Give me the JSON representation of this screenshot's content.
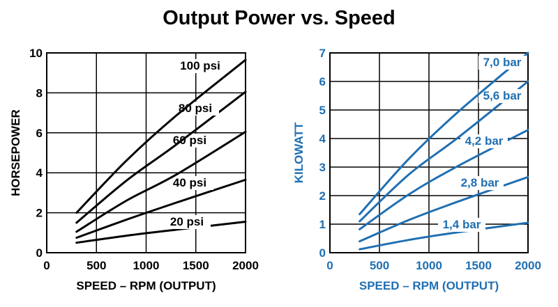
{
  "title": "Output Power vs. Speed",
  "colors": {
    "left": "#000000",
    "right": "#1f6fb2"
  },
  "chart_data": [
    {
      "type": "line",
      "xlabel": "SPEED – RPM (OUTPUT)",
      "ylabel": "HORSEPOWER",
      "xlim": [
        0,
        2000
      ],
      "ylim": [
        0,
        10
      ],
      "xticks": [
        0,
        500,
        1000,
        1500,
        2000
      ],
      "yticks": [
        0,
        2,
        4,
        6,
        8,
        10
      ],
      "grid": true,
      "series": [
        {
          "name": "20 psi",
          "x": [
            300,
            800,
            1300,
            2000
          ],
          "y": [
            0.5,
            0.85,
            1.15,
            1.55
          ]
        },
        {
          "name": "40 psi",
          "x": [
            300,
            800,
            1300,
            2000
          ],
          "y": [
            0.75,
            1.65,
            2.5,
            3.65
          ]
        },
        {
          "name": "60 psi",
          "x": [
            300,
            800,
            1300,
            2000
          ],
          "y": [
            1.05,
            2.6,
            3.9,
            6.05
          ]
        },
        {
          "name": "80 psi",
          "x": [
            300,
            800,
            1300,
            2000
          ],
          "y": [
            1.5,
            3.6,
            5.4,
            8.05
          ]
        },
        {
          "name": "100 psi",
          "x": [
            300,
            800,
            1300,
            2000
          ],
          "y": [
            2.0,
            4.6,
            6.85,
            9.65
          ]
        }
      ]
    },
    {
      "type": "line",
      "xlabel": "SPEED – RPM (OUTPUT)",
      "ylabel": "KILOWATT",
      "xlim": [
        0,
        2000
      ],
      "ylim": [
        0,
        7
      ],
      "xticks": [
        0,
        500,
        1000,
        1500,
        2000
      ],
      "yticks": [
        0,
        1,
        2,
        3,
        4,
        5,
        6,
        7
      ],
      "grid": true,
      "series": [
        {
          "name": "1,4 bar",
          "x": [
            300,
            800,
            1300,
            2000
          ],
          "y": [
            0.12,
            0.45,
            0.72,
            1.05
          ]
        },
        {
          "name": "2,8 bar",
          "x": [
            300,
            800,
            1300,
            2000
          ],
          "y": [
            0.4,
            1.15,
            1.8,
            2.65
          ]
        },
        {
          "name": "4,2 bar",
          "x": [
            300,
            800,
            1300,
            2000
          ],
          "y": [
            0.82,
            2.05,
            3.05,
            4.3
          ]
        },
        {
          "name": "5,6 bar",
          "x": [
            300,
            800,
            1300,
            2000
          ],
          "y": [
            1.1,
            2.75,
            4.05,
            6.0
          ]
        },
        {
          "name": "7,0 bar",
          "x": [
            300,
            800,
            1300,
            2000
          ],
          "y": [
            1.35,
            3.3,
            4.95,
            7.0
          ]
        }
      ]
    }
  ]
}
